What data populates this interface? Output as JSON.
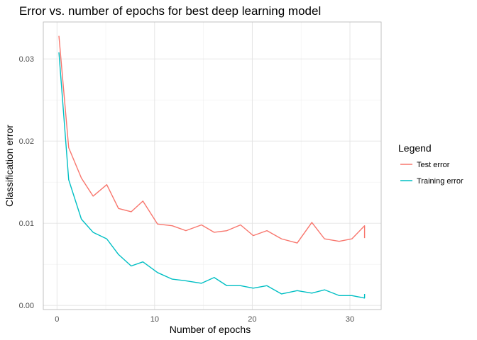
{
  "chart_data": {
    "type": "line",
    "title": "Error vs. number of epochs for best deep learning model",
    "xlabel": "Number of epochs",
    "ylabel": "Classification error",
    "xlim": [
      -1.4,
      33.2
    ],
    "ylim": [
      -0.0005,
      0.0345
    ],
    "x_ticks": [
      0,
      10,
      20,
      30
    ],
    "x_tick_labels": [
      "0",
      "10",
      "20",
      "30"
    ],
    "x_minor_ticks": [
      5,
      15,
      25
    ],
    "y_ticks": [
      0.0,
      0.01,
      0.02,
      0.03
    ],
    "y_tick_labels": [
      "0.00",
      "0.01",
      "0.02",
      "0.03"
    ],
    "y_minor_ticks": [
      0.005,
      0.015,
      0.025
    ],
    "grid": true,
    "legend": {
      "title": "Legend",
      "position": "right"
    },
    "series": [
      {
        "name": "Test error",
        "color": "#F8766D",
        "x": [
          0.2,
          1.2,
          2.5,
          3.7,
          5.1,
          6.3,
          7.6,
          8.8,
          10.3,
          11.8,
          13.2,
          14.8,
          16.1,
          17.4,
          18.8,
          20.1,
          21.5,
          23.0,
          24.6,
          26.1,
          27.4,
          28.9,
          30.2,
          31.5,
          31.5
        ],
        "y": [
          0.0328,
          0.0192,
          0.0155,
          0.0133,
          0.0147,
          0.0118,
          0.0114,
          0.0127,
          0.0099,
          0.0097,
          0.0091,
          0.0098,
          0.0089,
          0.0091,
          0.0098,
          0.0085,
          0.0091,
          0.0081,
          0.0076,
          0.0101,
          0.0081,
          0.0078,
          0.0081,
          0.0097,
          0.0082
        ]
      },
      {
        "name": "Training error",
        "color": "#00BFC4",
        "x": [
          0.2,
          1.2,
          2.5,
          3.7,
          5.1,
          6.3,
          7.6,
          8.8,
          10.3,
          11.8,
          13.2,
          14.8,
          16.1,
          17.4,
          18.8,
          20.1,
          21.5,
          23.0,
          24.6,
          26.1,
          27.4,
          28.9,
          30.2,
          31.5,
          31.5
        ],
        "y": [
          0.0308,
          0.0153,
          0.0105,
          0.0089,
          0.0081,
          0.0062,
          0.0048,
          0.0053,
          0.004,
          0.0032,
          0.003,
          0.0027,
          0.0034,
          0.0024,
          0.0024,
          0.0021,
          0.0024,
          0.0014,
          0.0018,
          0.0015,
          0.0019,
          0.0012,
          0.0012,
          0.0009,
          0.0014
        ]
      }
    ]
  }
}
